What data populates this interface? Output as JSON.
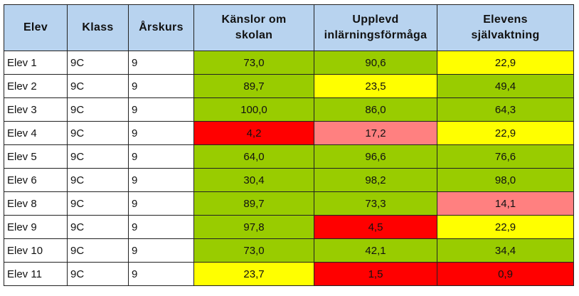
{
  "columns": [
    "Elev",
    "Klass",
    "Årskurs",
    "Känslor om skolan",
    "Upplevd inlärningsförmåga",
    "Elevens självaktning"
  ],
  "rows": [
    {
      "elev": "Elev 1",
      "klass": "9C",
      "arskurs": "9",
      "kanslor": {
        "value": "73,0",
        "color": "#99cc00"
      },
      "upplevd": {
        "value": "90,6",
        "color": "#99cc00"
      },
      "sjalv": {
        "value": "22,9",
        "color": "#ffff00"
      }
    },
    {
      "elev": "Elev 2",
      "klass": "9C",
      "arskurs": "9",
      "kanslor": {
        "value": "89,7",
        "color": "#99cc00"
      },
      "upplevd": {
        "value": "23,5",
        "color": "#ffff00"
      },
      "sjalv": {
        "value": "49,4",
        "color": "#99cc00"
      }
    },
    {
      "elev": "Elev 3",
      "klass": "9C",
      "arskurs": "9",
      "kanslor": {
        "value": "100,0",
        "color": "#99cc00"
      },
      "upplevd": {
        "value": "86,0",
        "color": "#99cc00"
      },
      "sjalv": {
        "value": "64,3",
        "color": "#99cc00"
      }
    },
    {
      "elev": "Elev 4",
      "klass": "9C",
      "arskurs": "9",
      "kanslor": {
        "value": "4,2",
        "color": "#ff0000"
      },
      "upplevd": {
        "value": "17,2",
        "color": "#ff8080"
      },
      "sjalv": {
        "value": "22,9",
        "color": "#ffff00"
      }
    },
    {
      "elev": "Elev 5",
      "klass": "9C",
      "arskurs": "9",
      "kanslor": {
        "value": "64,0",
        "color": "#99cc00"
      },
      "upplevd": {
        "value": "96,6",
        "color": "#99cc00"
      },
      "sjalv": {
        "value": "76,6",
        "color": "#99cc00"
      }
    },
    {
      "elev": "Elev 6",
      "klass": "9C",
      "arskurs": "9",
      "kanslor": {
        "value": "30,4",
        "color": "#99cc00"
      },
      "upplevd": {
        "value": "98,2",
        "color": "#99cc00"
      },
      "sjalv": {
        "value": "98,0",
        "color": "#99cc00"
      }
    },
    {
      "elev": "Elev 8",
      "klass": "9C",
      "arskurs": "9",
      "kanslor": {
        "value": "89,7",
        "color": "#99cc00"
      },
      "upplevd": {
        "value": "73,3",
        "color": "#99cc00"
      },
      "sjalv": {
        "value": "14,1",
        "color": "#ff8080"
      }
    },
    {
      "elev": "Elev 9",
      "klass": "9C",
      "arskurs": "9",
      "kanslor": {
        "value": "97,8",
        "color": "#99cc00"
      },
      "upplevd": {
        "value": "4,5",
        "color": "#ff0000"
      },
      "sjalv": {
        "value": "22,9",
        "color": "#ffff00"
      }
    },
    {
      "elev": "Elev 10",
      "klass": "9C",
      "arskurs": "9",
      "kanslor": {
        "value": "73,0",
        "color": "#99cc00"
      },
      "upplevd": {
        "value": "42,1",
        "color": "#99cc00"
      },
      "sjalv": {
        "value": "34,4",
        "color": "#99cc00"
      }
    },
    {
      "elev": "Elev 11",
      "klass": "9C",
      "arskurs": "9",
      "kanslor": {
        "value": "23,7",
        "color": "#ffff00"
      },
      "upplevd": {
        "value": "1,5",
        "color": "#ff0000"
      },
      "sjalv": {
        "value": "0,9",
        "color": "#ff0000"
      }
    }
  ]
}
